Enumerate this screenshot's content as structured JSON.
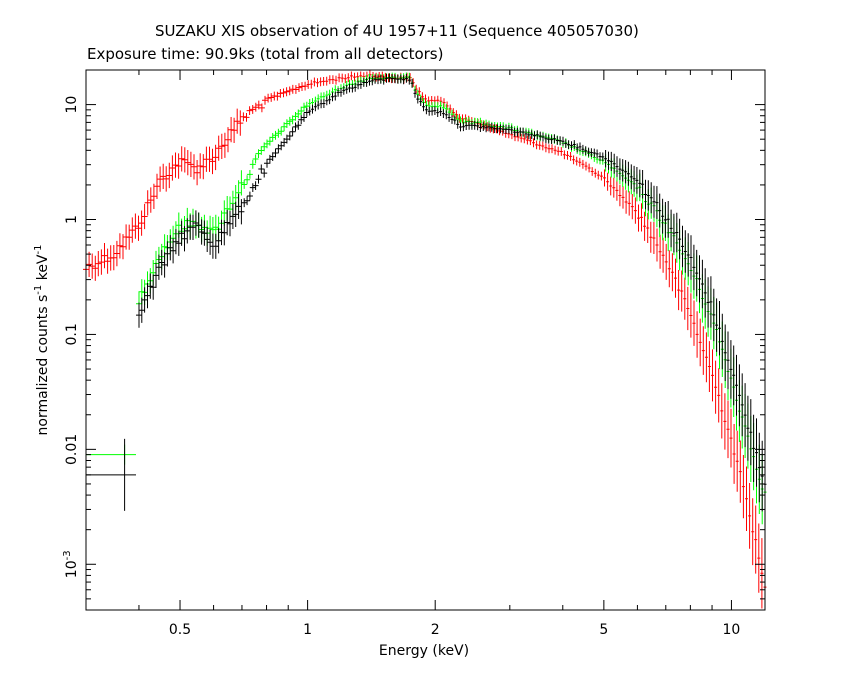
{
  "chart_data": {
    "type": "scatter",
    "title": "SUZAKU XIS observation of 4U 1957+11 (Sequence 405057030)",
    "subtitle": "Exposure time: 90.9ks (total from all detectors)",
    "xlabel": "Energy (keV)",
    "ylabel": "normalized counts s-1 keV-1",
    "xscale": "log",
    "yscale": "log",
    "xlim": [
      0.3,
      12
    ],
    "ylim": [
      0.0004,
      20
    ],
    "grid": false,
    "x_ticks": [
      {
        "value": 0.5,
        "label": "0.5"
      },
      {
        "value": 1,
        "label": "1"
      },
      {
        "value": 2,
        "label": "2"
      },
      {
        "value": 5,
        "label": "5"
      },
      {
        "value": 10,
        "label": "10"
      }
    ],
    "y_ticks": [
      {
        "value": 0.001,
        "label": "10-3"
      },
      {
        "value": 0.01,
        "label": "0.01"
      },
      {
        "value": 0.1,
        "label": "0.1"
      },
      {
        "value": 1,
        "label": "1"
      },
      {
        "value": 10,
        "label": "10"
      }
    ],
    "series": [
      {
        "color": "#ff0000",
        "x": [
          0.3,
          0.35,
          0.4,
          0.45,
          0.5,
          0.55,
          0.6,
          0.7,
          0.8,
          1.0,
          1.2,
          1.4,
          1.6,
          1.75,
          1.8,
          1.9,
          2.1,
          2.3,
          2.5,
          3.0,
          4.0,
          5.0,
          6.0,
          7.0,
          8.0,
          9.0,
          10.0,
          11.0,
          12.0
        ],
        "y": [
          0.38,
          0.5,
          0.9,
          2.2,
          3.2,
          2.8,
          3.5,
          7.5,
          11,
          15,
          17,
          18,
          17,
          17,
          14,
          11,
          10.5,
          7.5,
          7,
          5.5,
          3.8,
          2.3,
          1.15,
          0.45,
          0.15,
          0.045,
          0.012,
          0.003,
          0.0006
        ]
      },
      {
        "color": "#00ff00",
        "x": [
          0.4,
          0.45,
          0.5,
          0.55,
          0.6,
          0.7,
          0.8,
          1.0,
          1.2,
          1.4,
          1.6,
          1.75,
          1.8,
          1.9,
          2.1,
          2.3,
          2.5,
          3.0,
          4.0,
          5.0,
          6.0,
          7.0,
          8.0,
          9.0,
          10.0,
          11.0,
          12.0
        ],
        "y": [
          0.2,
          0.5,
          0.85,
          0.95,
          0.75,
          2.0,
          4.5,
          10,
          14,
          17,
          17,
          17,
          13,
          10,
          9.5,
          7,
          7,
          6.2,
          4.7,
          3.2,
          1.9,
          0.9,
          0.38,
          0.14,
          0.04,
          0.012,
          0.004
        ]
      },
      {
        "color": "#000000",
        "x": [
          0.4,
          0.45,
          0.5,
          0.55,
          0.6,
          0.7,
          0.8,
          1.0,
          1.2,
          1.4,
          1.6,
          1.75,
          1.8,
          1.9,
          2.1,
          2.3,
          2.5,
          3.0,
          4.0,
          5.0,
          6.0,
          7.0,
          8.0,
          9.0,
          10.0,
          11.0,
          12.0
        ],
        "y": [
          0.15,
          0.38,
          0.7,
          0.9,
          0.6,
          1.3,
          3.0,
          8.5,
          13,
          16,
          17,
          16.5,
          12,
          9,
          8.5,
          6.5,
          6.5,
          6.0,
          4.8,
          3.5,
          2.2,
          1.05,
          0.45,
          0.17,
          0.05,
          0.015,
          0.005
        ]
      }
    ],
    "error_bars": [
      {
        "color": "#00ff00",
        "x": 0.37,
        "y": 0.009
      },
      {
        "color": "#000000",
        "x": 0.37,
        "y": 0.006
      }
    ]
  }
}
